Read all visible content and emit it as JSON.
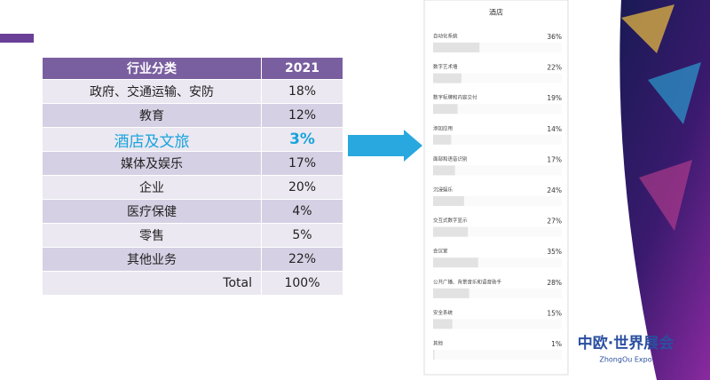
{
  "table": {
    "header": [
      "行业分类",
      "2021"
    ],
    "rows": [
      [
        "政府、交通运输、安防",
        "18%"
      ],
      [
        "教育",
        "12%"
      ],
      [
        "酒店及文旅",
        "3%"
      ],
      [
        "媒体及娱乐",
        "17%"
      ],
      [
        "企业",
        "20%"
      ],
      [
        "医疗保健",
        "4%"
      ],
      [
        "零售",
        "5%"
      ],
      [
        "其他业务",
        "22%"
      ],
      [
        "Total",
        "100%"
      ]
    ]
  },
  "panel": {
    "title": "酒店",
    "items": [
      {
        "label": "自动化系统",
        "value": 36,
        "value_label": "36%"
      },
      {
        "label": "数字艺术墙",
        "value": 22,
        "value_label": "22%"
      },
      {
        "label": "数字标牌和内容交付",
        "value": 19,
        "value_label": "19%"
      },
      {
        "label": "添加应用",
        "value": 14,
        "value_label": "14%"
      },
      {
        "label": "面部和语音识别",
        "value": 17,
        "value_label": "17%"
      },
      {
        "label": "沉浸娱乐",
        "value": 24,
        "value_label": "24%"
      },
      {
        "label": "交互式数字显示",
        "value": 27,
        "value_label": "27%"
      },
      {
        "label": "会议室",
        "value": 35,
        "value_label": "35%"
      },
      {
        "label": "公共广播、背景音乐和语音助手",
        "value": 28,
        "value_label": "28%"
      },
      {
        "label": "安全系统",
        "value": 15,
        "value_label": "15%"
      },
      {
        "label": "其他",
        "value": 1,
        "value_label": "1%"
      }
    ]
  },
  "logo": {
    "text": "中欧·世界展会",
    "subtext": "ZhongOu Expo"
  }
}
